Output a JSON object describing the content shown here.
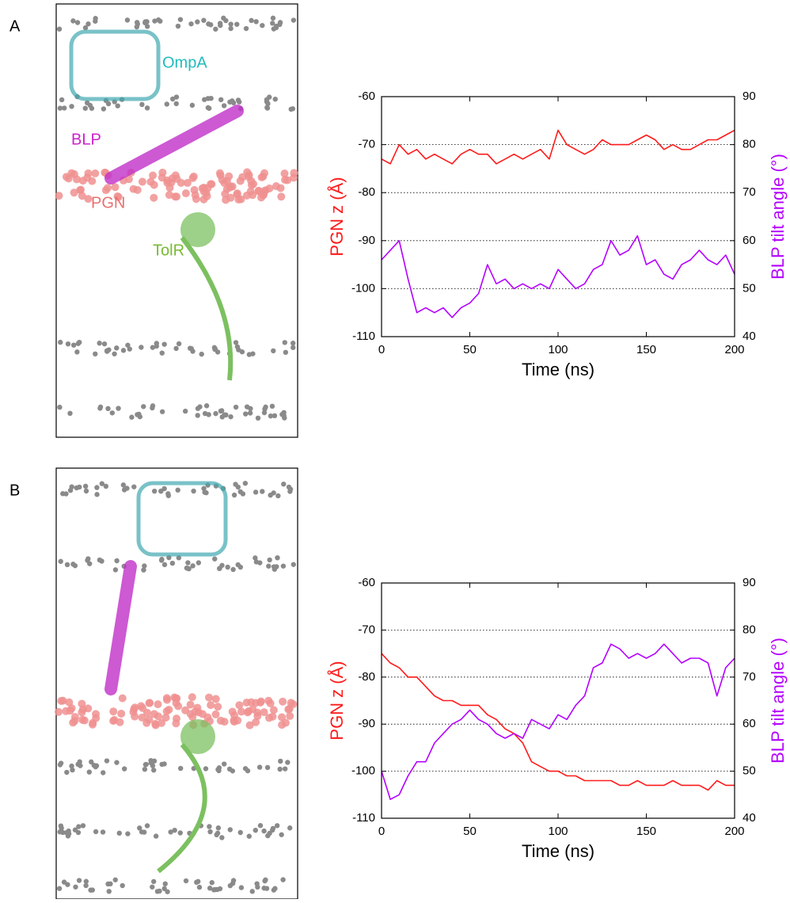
{
  "panels": [
    {
      "label": "A",
      "image_labels": [
        "OmpA",
        "BLP",
        "PGN",
        "TolR"
      ]
    },
    {
      "label": "B"
    }
  ],
  "chart_data": [
    {
      "type": "line",
      "xlabel": "Time (ns)",
      "ylabel": "PGN z (Å)",
      "y2label": "BLP tilt angle (°)",
      "x": [
        0,
        5,
        10,
        15,
        20,
        25,
        30,
        35,
        40,
        45,
        50,
        55,
        60,
        65,
        70,
        75,
        80,
        85,
        90,
        95,
        100,
        105,
        110,
        115,
        120,
        125,
        130,
        135,
        140,
        145,
        150,
        155,
        160,
        165,
        170,
        175,
        180,
        185,
        190,
        195,
        200
      ],
      "series": [
        {
          "color": "#ff1a1a",
          "values": [
            -73,
            -74,
            -70,
            -72,
            -71,
            -73,
            -72,
            -73,
            -74,
            -72,
            -71,
            -72,
            -72,
            -74,
            -73,
            -72,
            -73,
            -72,
            -71,
            -73,
            -67,
            -70,
            -71,
            -72,
            -71,
            -69,
            -70,
            -70,
            -70,
            -69,
            -68,
            -69,
            -71,
            -70,
            -71,
            -71,
            -70,
            -69,
            -69,
            -68,
            -67
          ]
        },
        {
          "color": "#b400ff",
          "axis": "y2",
          "values": [
            56,
            58,
            60,
            52,
            45,
            46,
            45,
            46,
            44,
            46,
            47,
            49,
            55,
            51,
            52,
            50,
            51,
            50,
            51,
            50,
            54,
            52,
            50,
            51,
            54,
            55,
            60,
            57,
            58,
            61,
            55,
            56,
            53,
            52,
            55,
            56,
            58,
            56,
            55,
            57,
            53
          ]
        }
      ],
      "xlim": [
        0,
        200
      ],
      "xticks": [
        0,
        50,
        100,
        150,
        200
      ],
      "ylim": [
        -110,
        -60
      ],
      "yticks": [
        -110,
        -100,
        -90,
        -80,
        -70,
        -60
      ],
      "y2lim": [
        40,
        90
      ],
      "y2ticks": [
        40,
        50,
        60,
        70,
        80,
        90
      ],
      "grid": true
    },
    {
      "type": "line",
      "xlabel": "Time (ns)",
      "ylabel": "PGN z (Å)",
      "y2label": "BLP tilt angle (°)",
      "x": [
        0,
        5,
        10,
        15,
        20,
        25,
        30,
        35,
        40,
        45,
        50,
        55,
        60,
        65,
        70,
        75,
        80,
        85,
        90,
        95,
        100,
        105,
        110,
        115,
        120,
        125,
        130,
        135,
        140,
        145,
        150,
        155,
        160,
        165,
        170,
        175,
        180,
        185,
        190,
        195,
        200
      ],
      "series": [
        {
          "color": "#ff1a1a",
          "values": [
            -75,
            -77,
            -78,
            -80,
            -80,
            -82,
            -84,
            -85,
            -85,
            -86,
            -86,
            -86,
            -88,
            -89,
            -91,
            -92,
            -94,
            -98,
            -99,
            -100,
            -100,
            -101,
            -101,
            -102,
            -102,
            -102,
            -102,
            -103,
            -103,
            -102,
            -103,
            -103,
            -103,
            -102,
            -103,
            -103,
            -103,
            -104,
            -102,
            -103,
            -103
          ]
        },
        {
          "color": "#b400ff",
          "axis": "y2",
          "values": [
            50,
            44,
            45,
            49,
            52,
            52,
            56,
            58,
            60,
            61,
            63,
            61,
            60,
            58,
            57,
            58,
            57,
            61,
            60,
            59,
            62,
            61,
            64,
            66,
            72,
            73,
            77,
            76,
            74,
            75,
            74,
            75,
            77,
            75,
            73,
            74,
            74,
            73,
            66,
            72,
            74
          ]
        }
      ],
      "xlim": [
        0,
        200
      ],
      "xticks": [
        0,
        50,
        100,
        150,
        200
      ],
      "ylim": [
        -110,
        -60
      ],
      "yticks": [
        -110,
        -100,
        -90,
        -80,
        -70,
        -60
      ],
      "y2lim": [
        40,
        90
      ],
      "y2ticks": [
        40,
        50,
        60,
        70,
        80,
        90
      ],
      "grid": true
    }
  ]
}
